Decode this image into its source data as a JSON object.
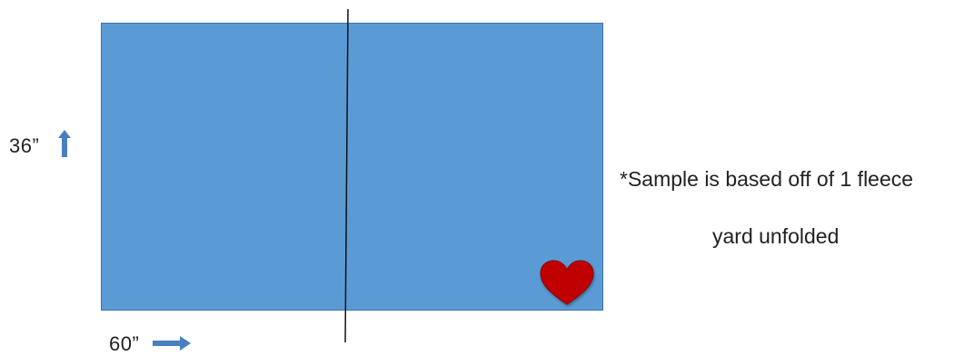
{
  "diagram": {
    "fabric_color": "#5b9bd5",
    "fabric_border_color": "#3f72aa",
    "heart_color": "#c00000",
    "fold_line_color": "#111111",
    "arrow_color": "#4a7fbf",
    "height_label": "36”",
    "width_label": "60”",
    "height_arrow_icon": "arrow-up-icon",
    "width_arrow_icon": "arrow-right-icon",
    "heart_icon": "heart-icon"
  },
  "note": {
    "line1": "*Sample is based off of 1 fleece",
    "line2": "yard unfolded"
  }
}
